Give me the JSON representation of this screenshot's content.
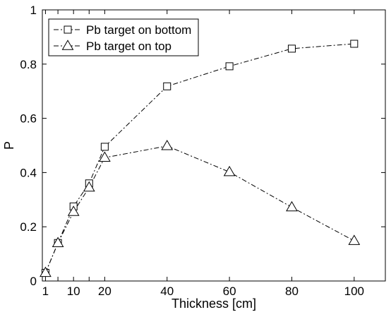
{
  "chart_data": {
    "type": "line",
    "xlabel": "Thickness [cm]",
    "ylabel": "P",
    "xlim": [
      0,
      110
    ],
    "ylim": [
      0,
      1
    ],
    "xticks": [
      1,
      10,
      20,
      40,
      60,
      80,
      100
    ],
    "xtick_labels": [
      "1",
      "10",
      "20",
      "40",
      "60",
      "80",
      "100"
    ],
    "yticks": [
      0,
      0.2,
      0.4,
      0.6,
      0.8,
      1
    ],
    "ytick_labels": [
      "0",
      "0.2",
      "0.4",
      "0.6",
      "0.8",
      "1"
    ],
    "minor_xticks": [
      5,
      15
    ],
    "grid": false,
    "legend_position": "top-left",
    "series": [
      {
        "name": "Pb target on bottom",
        "marker": "square",
        "line_style": "dash-dot",
        "x": [
          1,
          5,
          10,
          15,
          20,
          40,
          60,
          80,
          100
        ],
        "y": [
          0.03,
          0.14,
          0.275,
          0.36,
          0.495,
          0.718,
          0.792,
          0.857,
          0.875
        ]
      },
      {
        "name": "Pb target on top",
        "marker": "triangle",
        "line_style": "dash-dot",
        "x": [
          1,
          5,
          10,
          15,
          20,
          40,
          60,
          80,
          100
        ],
        "y": [
          0.03,
          0.14,
          0.255,
          0.345,
          0.455,
          0.498,
          0.402,
          0.272,
          0.148
        ]
      }
    ]
  }
}
